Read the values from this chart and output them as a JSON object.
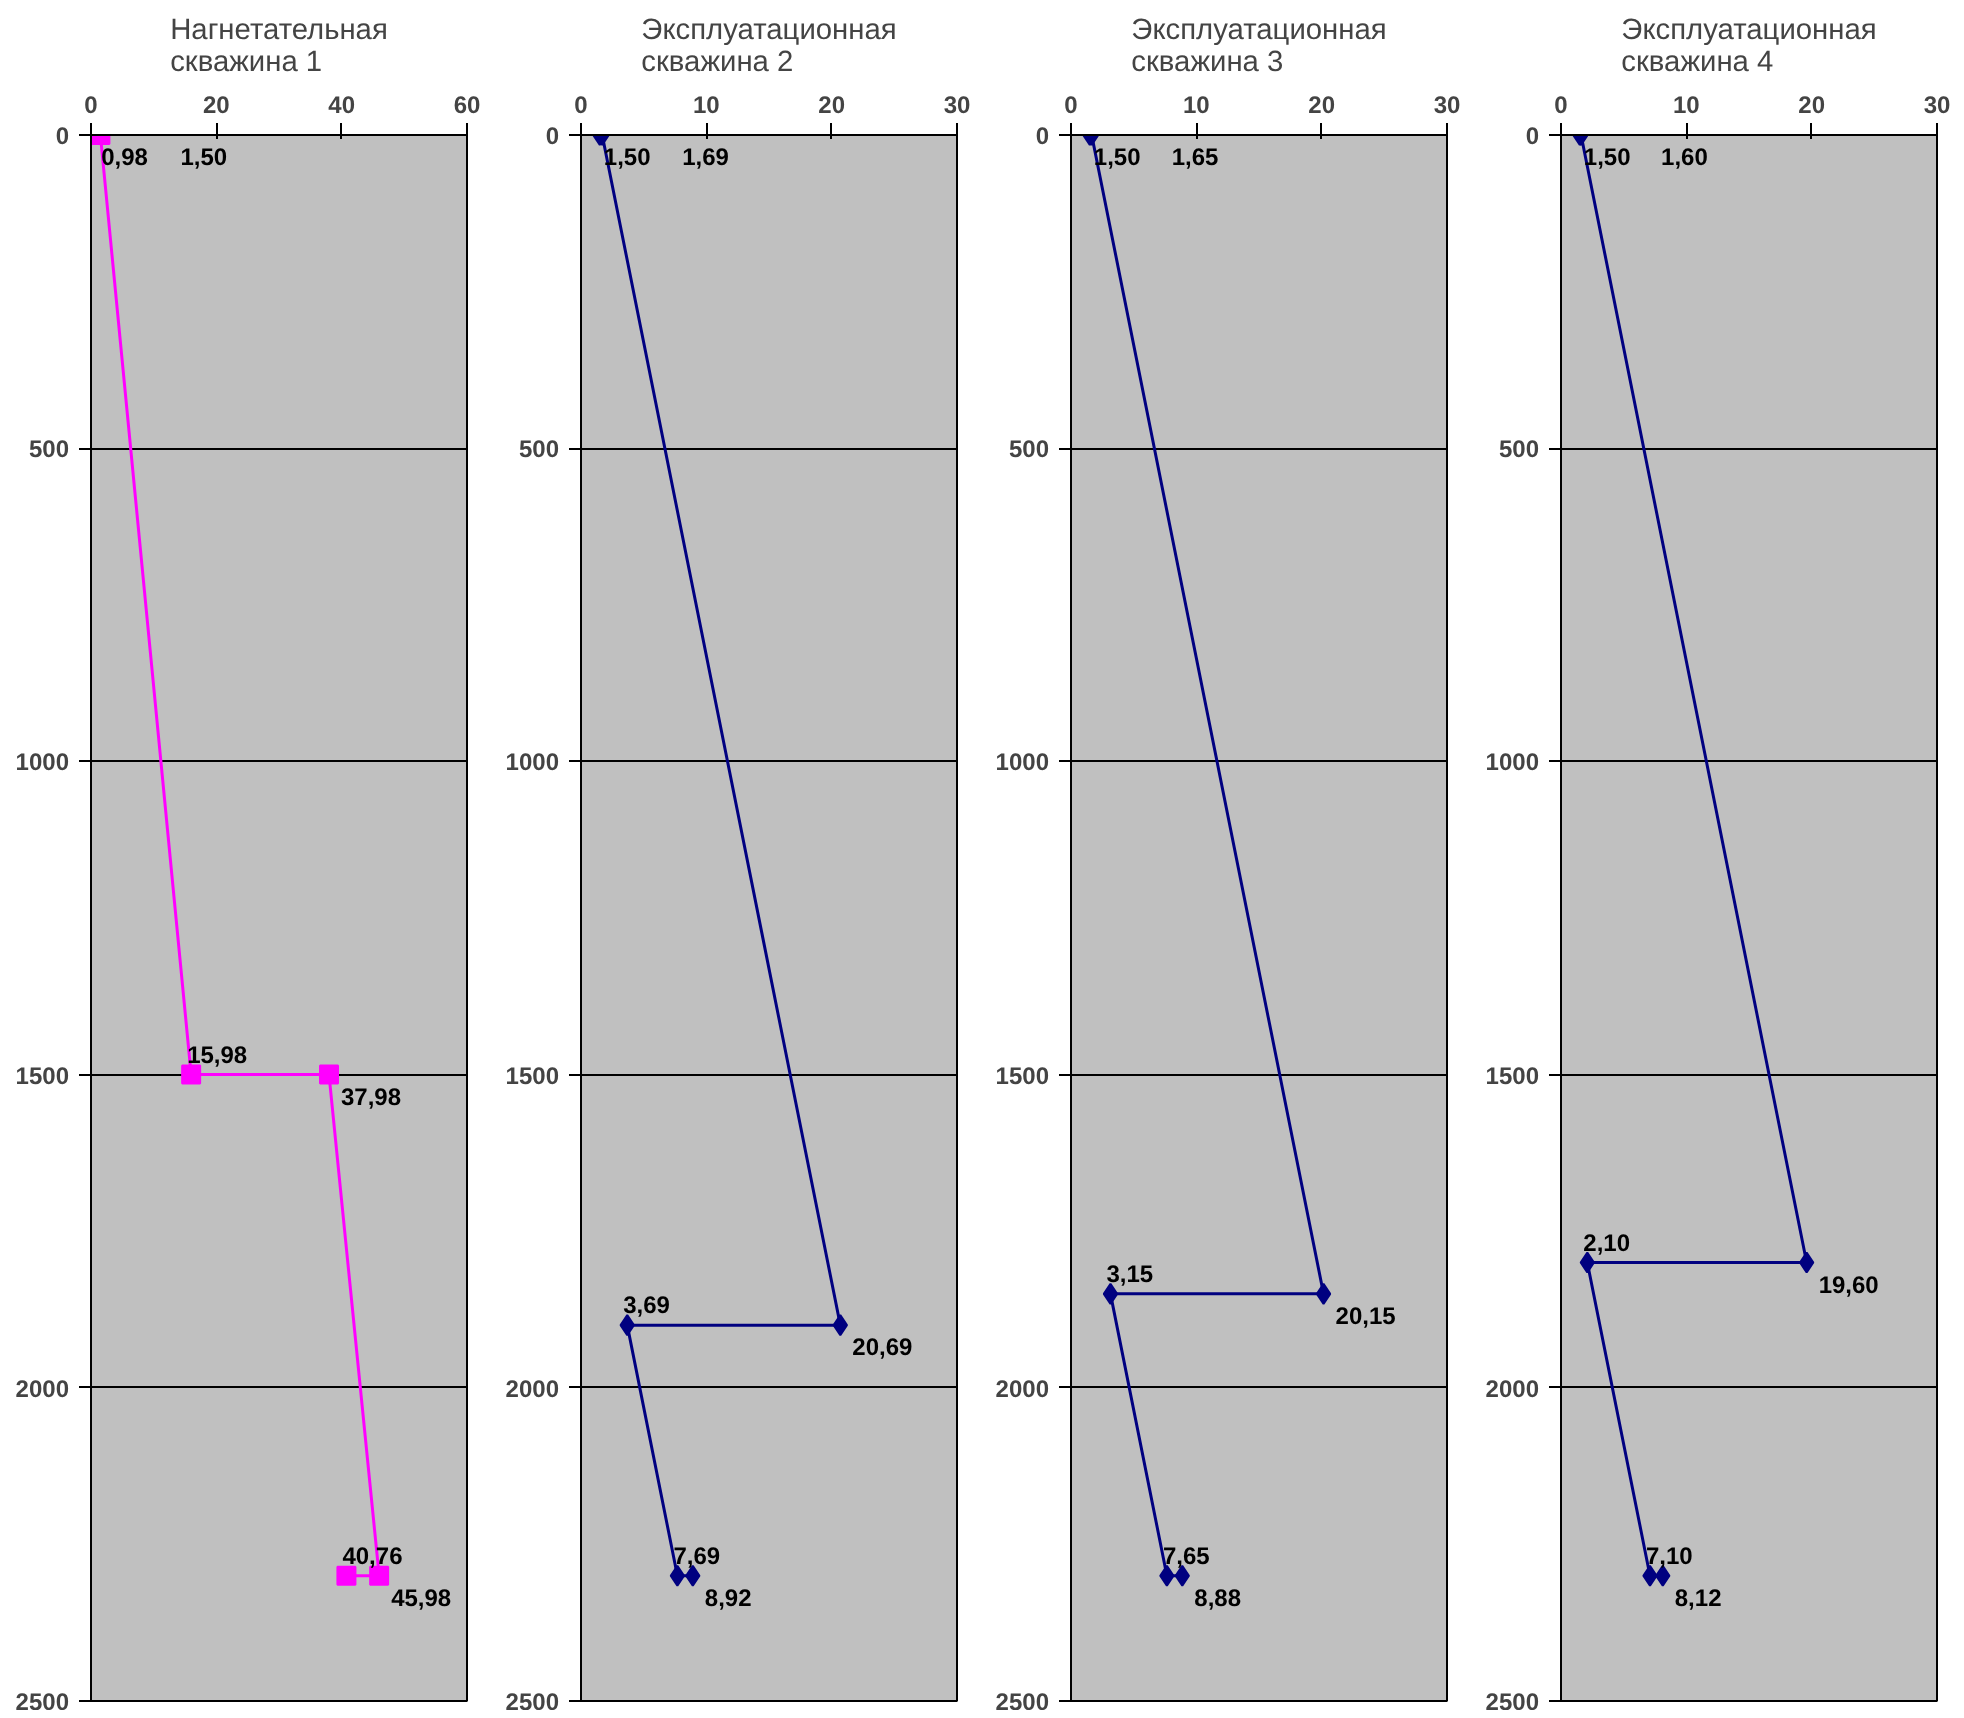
{
  "chart_data": [
    {
      "type": "line",
      "orientation": "horizontal",
      "title": "Нагнетательная\nскважина 1",
      "x": [
        0,
        0,
        1500,
        1500,
        2300,
        2300
      ],
      "xlim": [
        0,
        60
      ],
      "xticks": [
        0,
        20,
        40,
        60
      ],
      "ylim": [
        2500,
        0
      ],
      "yticks": [
        0,
        500,
        1000,
        1500,
        2000,
        2500
      ],
      "grid": "y",
      "marker": "square",
      "series": [
        {
          "color": "#ff00ff",
          "values": [
            0.98,
            1.5,
            15.98,
            37.98,
            45.98,
            40.76
          ],
          "value_labels": [
            "0,98",
            "1,50",
            "15,98",
            "37,98",
            "45,98",
            "40,76"
          ]
        }
      ]
    },
    {
      "type": "line",
      "orientation": "horizontal",
      "title": "Эксплуатационная\nскважина 2",
      "x": [
        0,
        0,
        1900,
        1900,
        2300,
        2300
      ],
      "xlim": [
        0,
        30
      ],
      "xticks": [
        0,
        10,
        20,
        30
      ],
      "ylim": [
        2500,
        0
      ],
      "yticks": [
        0,
        500,
        1000,
        1500,
        2000,
        2500
      ],
      "grid": "y",
      "marker": "diamond",
      "series": [
        {
          "color": "#000080",
          "values": [
            1.5,
            1.69,
            20.69,
            3.69,
            7.69,
            8.92
          ],
          "value_labels": [
            "1,50",
            "1,69",
            "20,69",
            "3,69",
            "7,69",
            "8,92"
          ]
        }
      ]
    },
    {
      "type": "line",
      "orientation": "horizontal",
      "title": "Эксплуатационная\nскважина 3",
      "x": [
        0,
        0,
        1850,
        1850,
        2300,
        2300
      ],
      "xlim": [
        0,
        30
      ],
      "xticks": [
        0,
        10,
        20,
        30
      ],
      "ylim": [
        2500,
        0
      ],
      "yticks": [
        0,
        500,
        1000,
        1500,
        2000,
        2500
      ],
      "grid": "y",
      "marker": "diamond",
      "series": [
        {
          "color": "#000080",
          "values": [
            1.5,
            1.65,
            20.15,
            3.15,
            7.65,
            8.88
          ],
          "value_labels": [
            "1,50",
            "1,65",
            "20,15",
            "3,15",
            "7,65",
            "8,88"
          ]
        }
      ]
    },
    {
      "type": "line",
      "orientation": "horizontal",
      "title": "Эксплуатационная\nскважина 4",
      "x": [
        0,
        0,
        1800,
        1800,
        2300,
        2300
      ],
      "xlim": [
        0,
        30
      ],
      "xticks": [
        0,
        10,
        20,
        30
      ],
      "ylim": [
        2500,
        0
      ],
      "yticks": [
        0,
        500,
        1000,
        1500,
        2000,
        2500
      ],
      "grid": "y",
      "marker": "diamond",
      "series": [
        {
          "color": "#000080",
          "values": [
            1.5,
            1.6,
            19.6,
            2.1,
            7.1,
            8.12
          ],
          "value_labels": [
            "1,50",
            "1,60",
            "19,60",
            "2,10",
            "7,10",
            "8,12"
          ]
        }
      ]
    }
  ]
}
